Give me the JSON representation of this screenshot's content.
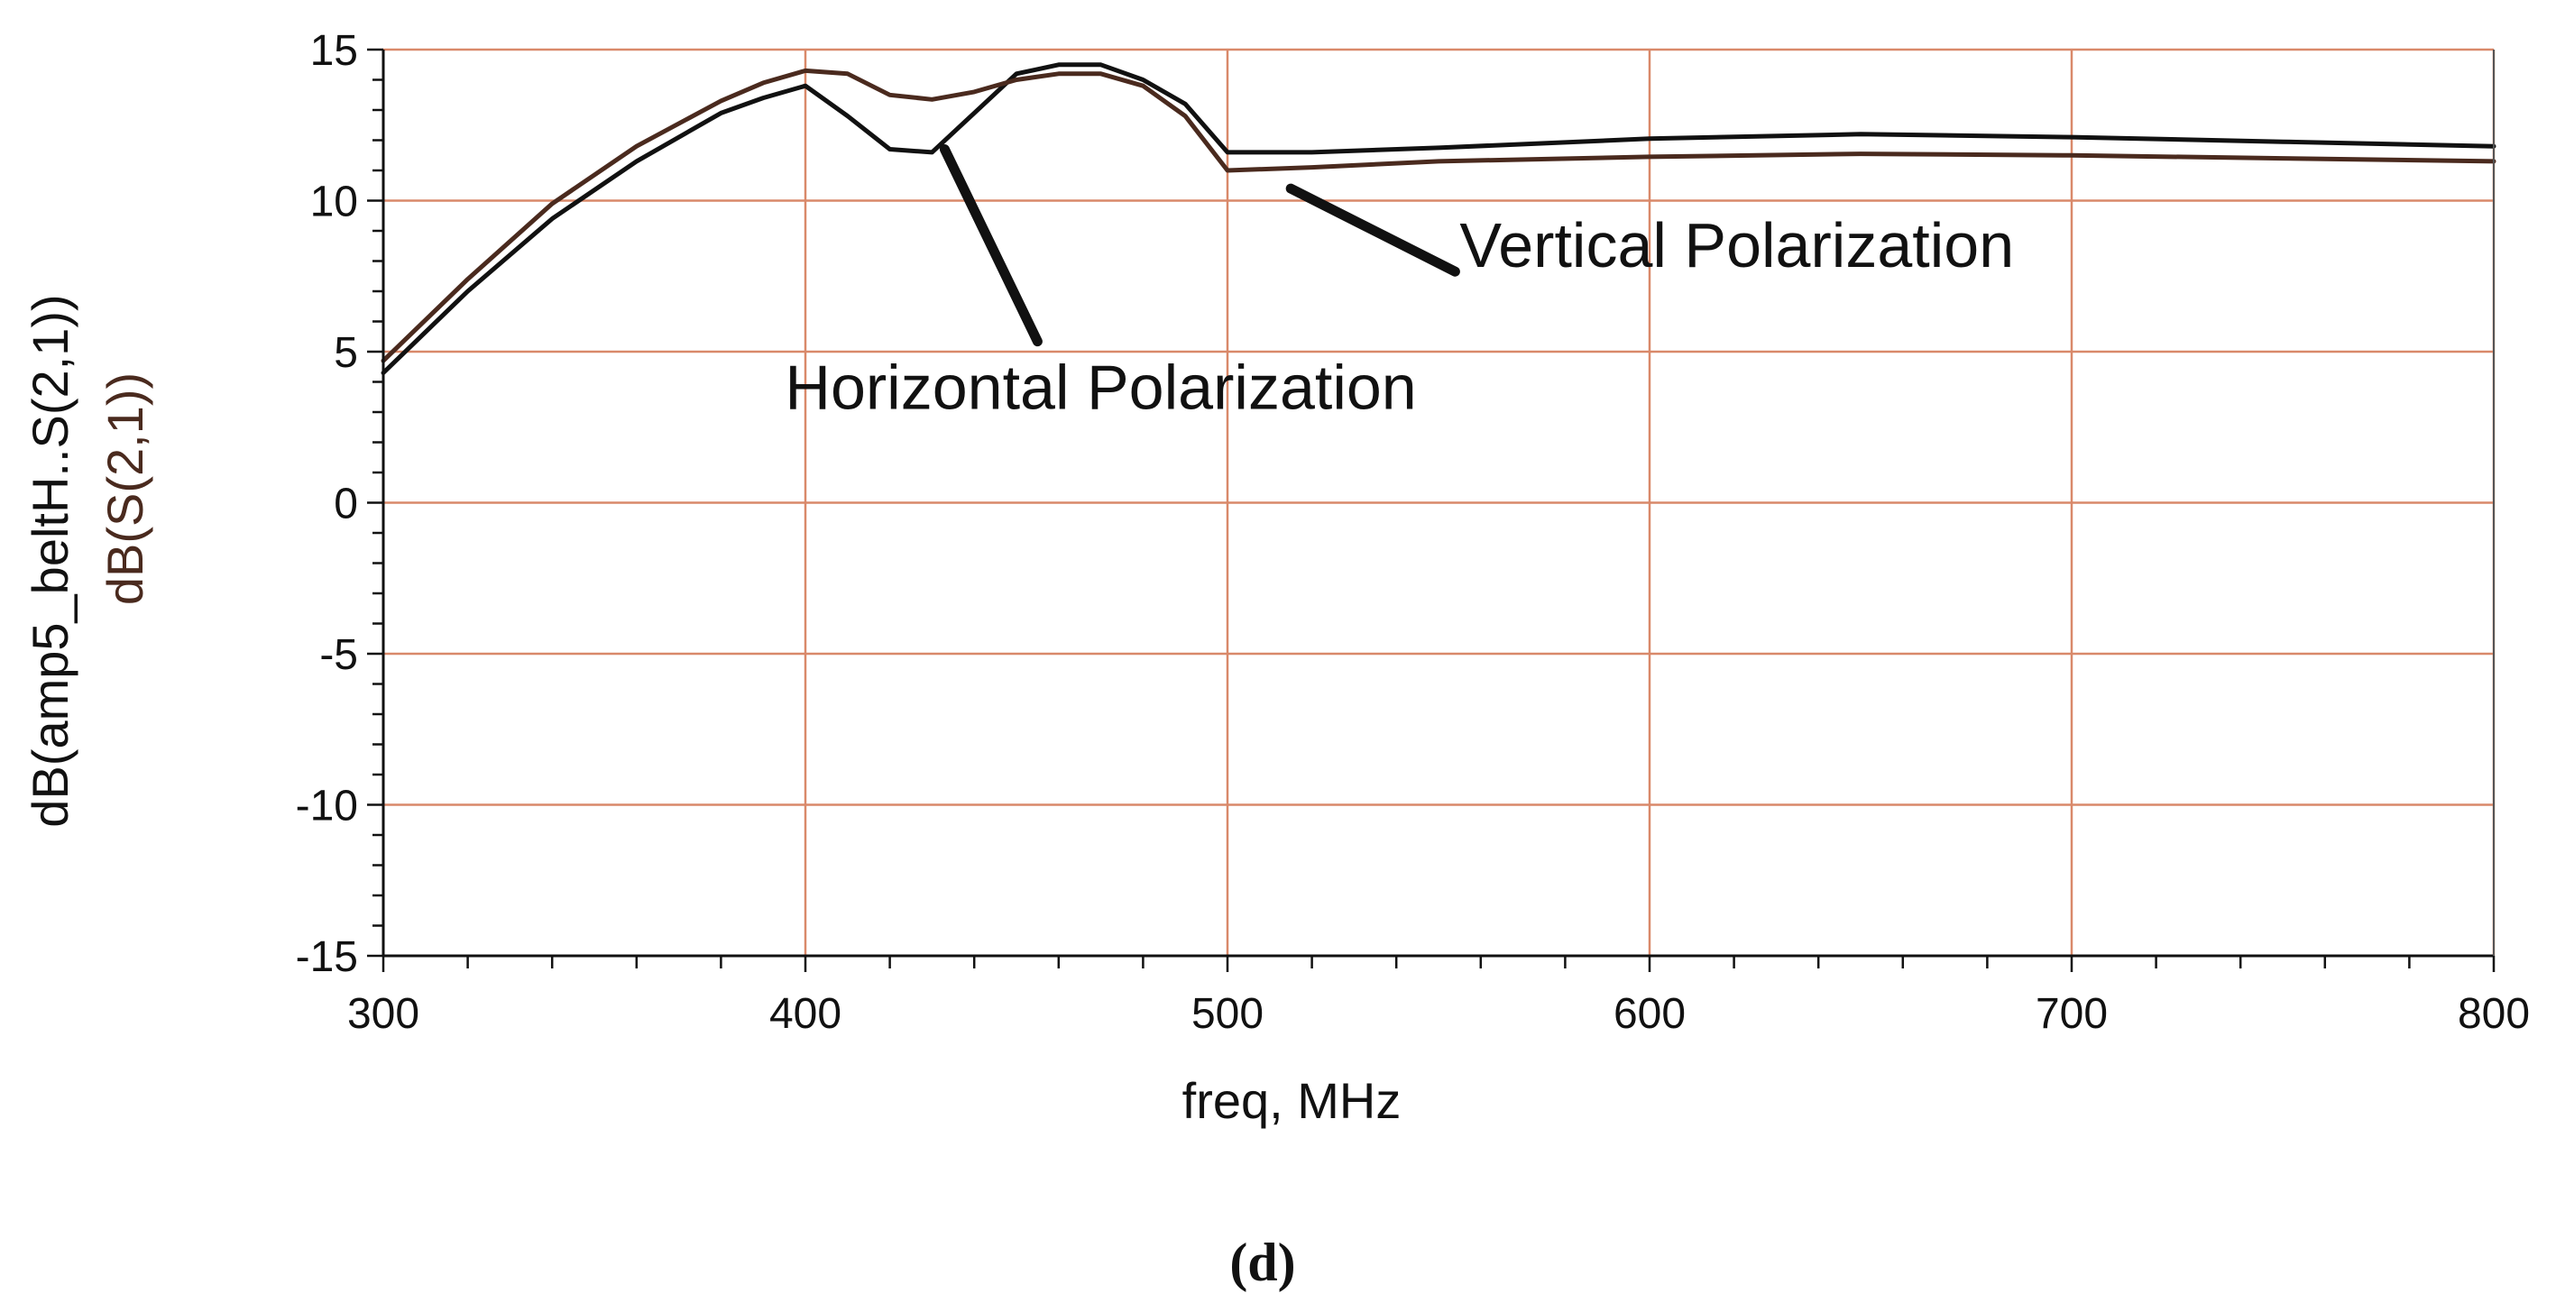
{
  "chart_data": {
    "type": "line",
    "title": "",
    "xlabel": "freq, MHz",
    "ylabels": [
      {
        "text": "dB(amp5_beltH..S(2,1))",
        "color": "#111111"
      },
      {
        "text": "dB(S(2,1))",
        "color": "#4a2a1e"
      }
    ],
    "xlim": [
      300,
      800
    ],
    "ylim": [
      -15,
      15
    ],
    "x_ticks": [
      300,
      400,
      500,
      600,
      700,
      800
    ],
    "x_tick_labels": [
      "300",
      "400",
      "500",
      "600",
      "700",
      "800"
    ],
    "y_ticks": [
      15,
      10,
      5,
      0,
      -5,
      -10,
      -15
    ],
    "y_tick_labels": [
      "15",
      "10",
      "5",
      "0",
      "-5",
      "-10",
      "-15"
    ],
    "x_minor_step": 20,
    "y_minor_step": 1,
    "grid": true,
    "grid_color": "#d9896a",
    "series": [
      {
        "name": "dB(amp5_beltH..S(2,1))",
        "color": "#111111",
        "x": [
          300,
          320,
          340,
          360,
          380,
          390,
          400,
          410,
          420,
          430,
          440,
          450,
          460,
          470,
          480,
          490,
          500,
          520,
          550,
          600,
          650,
          700,
          750,
          800
        ],
        "y": [
          4.3,
          7.0,
          9.4,
          11.3,
          12.9,
          13.4,
          13.8,
          12.8,
          11.7,
          11.6,
          12.9,
          14.2,
          14.5,
          14.5,
          14.0,
          13.2,
          11.6,
          11.6,
          11.75,
          12.05,
          12.2,
          12.1,
          11.95,
          11.8
        ]
      },
      {
        "name": "dB(S(2,1))",
        "color": "#4a2a1e",
        "x": [
          300,
          320,
          340,
          360,
          380,
          390,
          400,
          410,
          420,
          430,
          440,
          450,
          460,
          470,
          480,
          490,
          500,
          520,
          550,
          600,
          650,
          700,
          750,
          800
        ],
        "y": [
          4.7,
          7.4,
          9.9,
          11.8,
          13.3,
          13.9,
          14.3,
          14.2,
          13.5,
          13.35,
          13.6,
          14.0,
          14.2,
          14.2,
          13.8,
          12.8,
          11.0,
          11.1,
          11.3,
          11.45,
          11.55,
          11.5,
          11.4,
          11.3
        ]
      }
    ],
    "annotations": [
      {
        "text": "Horizontal Polarization",
        "target_series": 0,
        "target_x": 433,
        "target_y": 11.7,
        "label_x": 455,
        "label_y": 3.1
      },
      {
        "text": "Vertical Polarization",
        "target_series": 1,
        "target_x": 515,
        "target_y": 10.4,
        "label_x": 555,
        "label_y": 7.8
      }
    ]
  },
  "figure": {
    "panel_label": "(d)"
  }
}
